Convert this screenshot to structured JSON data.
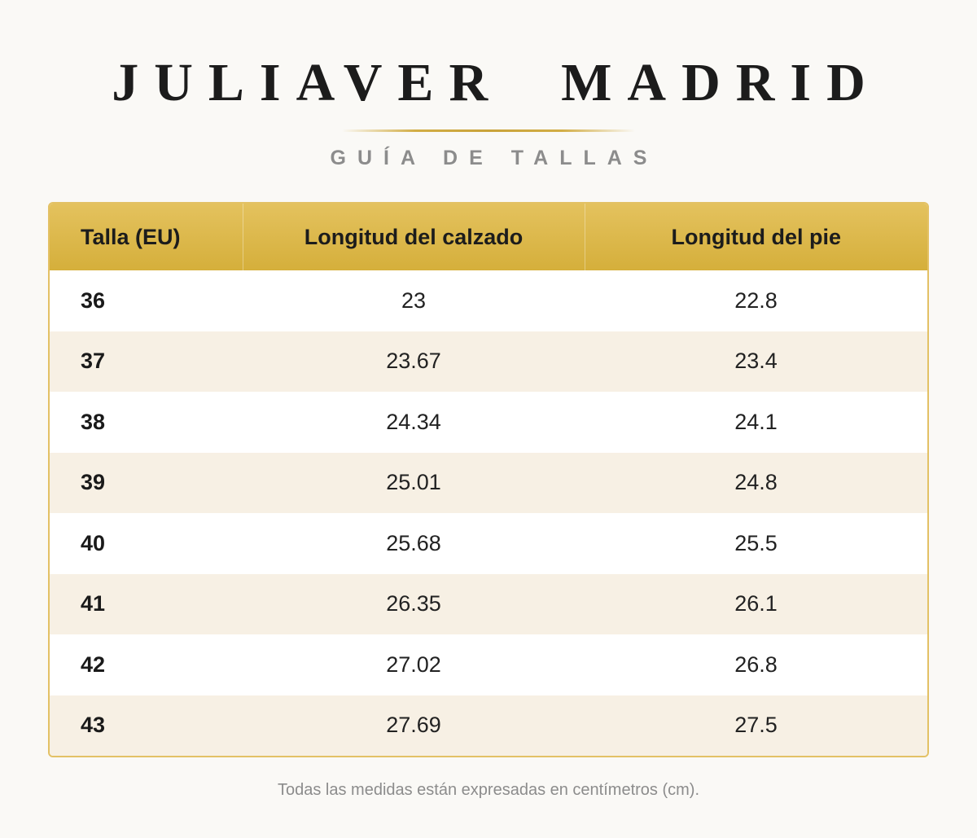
{
  "header": {
    "brand": "JULIAVER  MADRID",
    "subtitle": "GUÍA DE TALLAS"
  },
  "table": {
    "columns": [
      "Talla (EU)",
      "Longitud del calzado",
      "Longitud del pie"
    ],
    "rows": [
      [
        "36",
        "23",
        "22.8"
      ],
      [
        "37",
        "23.67",
        "23.4"
      ],
      [
        "38",
        "24.34",
        "24.1"
      ],
      [
        "39",
        "25.01",
        "24.8"
      ],
      [
        "40",
        "25.68",
        "25.5"
      ],
      [
        "41",
        "26.35",
        "26.1"
      ],
      [
        "42",
        "27.02",
        "26.8"
      ],
      [
        "43",
        "27.69",
        "27.5"
      ]
    ]
  },
  "footer": {
    "note": "Todas las medidas están expresadas en centímetros (cm)."
  },
  "colors": {
    "accent_gold": "#d5af3b",
    "row_alt": "#f7f0e4",
    "background": "#faf9f6"
  }
}
